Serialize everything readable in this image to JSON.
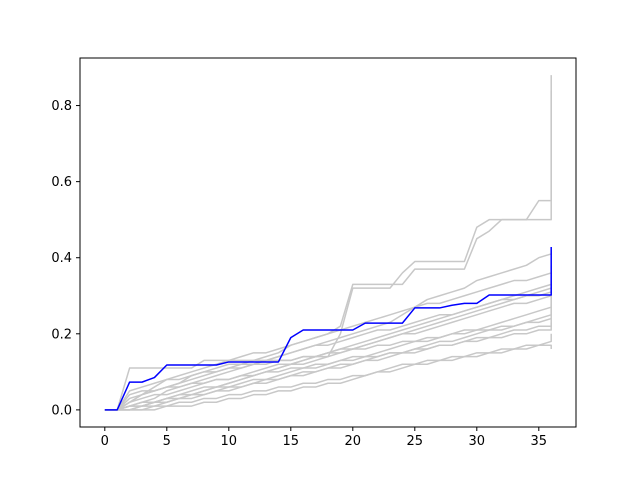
{
  "chart_data": {
    "type": "line",
    "title": "",
    "xlabel": "",
    "ylabel": "",
    "xlim": [
      -2,
      38
    ],
    "ylim": [
      -0.045,
      0.925
    ],
    "x_ticks": [
      0,
      5,
      10,
      15,
      20,
      25,
      30,
      35
    ],
    "x_tick_labels": [
      "0",
      "5",
      "10",
      "15",
      "20",
      "25",
      "30",
      "35"
    ],
    "y_ticks": [
      0.0,
      0.2,
      0.4,
      0.6,
      0.8
    ],
    "y_tick_labels": [
      "0.0",
      "0.2",
      "0.4",
      "0.6",
      "0.8"
    ],
    "grid": false,
    "background_series_color": "#c8c8c8",
    "highlight_color": "#0000ff",
    "x": [
      0,
      1,
      2,
      3,
      4,
      5,
      6,
      7,
      8,
      9,
      10,
      11,
      12,
      13,
      14,
      15,
      16,
      17,
      18,
      19,
      20,
      21,
      22,
      23,
      24,
      25,
      26,
      27,
      28,
      29,
      30,
      31,
      32,
      33,
      34,
      35,
      36
    ],
    "highlight_series": {
      "values": [
        0.0,
        0.0,
        0.073,
        0.073,
        0.085,
        0.118,
        0.118,
        0.118,
        0.118,
        0.118,
        0.126,
        0.126,
        0.126,
        0.126,
        0.126,
        0.19,
        0.21,
        0.21,
        0.21,
        0.21,
        0.21,
        0.228,
        0.228,
        0.228,
        0.228,
        0.268,
        0.268,
        0.268,
        0.275,
        0.28,
        0.28,
        0.302,
        0.302,
        0.302,
        0.302,
        0.302,
        0.302
      ],
      "final_spike": 0.428
    },
    "background_series": [
      {
        "values": [
          0.0,
          0.0,
          0.11,
          0.11,
          0.11,
          0.11,
          0.11,
          0.11,
          0.13,
          0.13,
          0.13,
          0.13,
          0.13,
          0.13,
          0.13,
          0.13,
          0.14,
          0.14,
          0.14,
          0.2,
          0.32,
          0.32,
          0.32,
          0.32,
          0.36,
          0.39,
          0.39,
          0.39,
          0.39,
          0.39,
          0.48,
          0.5,
          0.5,
          0.5,
          0.5,
          0.55,
          0.55
        ],
        "final_spike": 0.88
      },
      {
        "values": [
          0.0,
          0.0,
          0.02,
          0.04,
          0.05,
          0.06,
          0.07,
          0.09,
          0.1,
          0.11,
          0.12,
          0.12,
          0.13,
          0.14,
          0.15,
          0.17,
          0.18,
          0.19,
          0.2,
          0.22,
          0.33,
          0.33,
          0.33,
          0.33,
          0.33,
          0.37,
          0.37,
          0.37,
          0.37,
          0.37,
          0.45,
          0.47,
          0.5,
          0.5,
          0.5,
          0.5,
          0.5
        ],
        "final_spike": 0.84
      },
      {
        "values": [
          0.0,
          0.0,
          0.01,
          0.02,
          0.03,
          0.05,
          0.06,
          0.07,
          0.08,
          0.09,
          0.1,
          0.11,
          0.12,
          0.13,
          0.14,
          0.15,
          0.16,
          0.17,
          0.18,
          0.19,
          0.2,
          0.21,
          0.22,
          0.23,
          0.25,
          0.27,
          0.29,
          0.3,
          0.31,
          0.32,
          0.34,
          0.35,
          0.36,
          0.37,
          0.38,
          0.4,
          0.41
        ],
        "final_spike": 0.42
      },
      {
        "values": [
          0.0,
          0.0,
          0.01,
          0.01,
          0.02,
          0.03,
          0.04,
          0.05,
          0.06,
          0.06,
          0.07,
          0.08,
          0.09,
          0.1,
          0.11,
          0.12,
          0.13,
          0.14,
          0.15,
          0.16,
          0.17,
          0.18,
          0.19,
          0.2,
          0.21,
          0.22,
          0.23,
          0.24,
          0.25,
          0.26,
          0.27,
          0.28,
          0.29,
          0.3,
          0.31,
          0.32,
          0.33
        ],
        "final_spike": 0.36
      },
      {
        "values": [
          0.0,
          0.0,
          0.0,
          0.01,
          0.01,
          0.02,
          0.03,
          0.03,
          0.04,
          0.05,
          0.06,
          0.06,
          0.07,
          0.08,
          0.08,
          0.09,
          0.1,
          0.1,
          0.11,
          0.12,
          0.12,
          0.13,
          0.14,
          0.15,
          0.15,
          0.16,
          0.17,
          0.18,
          0.18,
          0.19,
          0.2,
          0.21,
          0.21,
          0.22,
          0.23,
          0.24,
          0.25
        ],
        "final_spike": 0.28
      },
      {
        "values": [
          0.0,
          0.0,
          0.05,
          0.06,
          0.07,
          0.08,
          0.08,
          0.09,
          0.1,
          0.1,
          0.11,
          0.11,
          0.12,
          0.12,
          0.13,
          0.13,
          0.14,
          0.14,
          0.15,
          0.15,
          0.16,
          0.16,
          0.17,
          0.17,
          0.18,
          0.18,
          0.19,
          0.19,
          0.2,
          0.2,
          0.21,
          0.21,
          0.22,
          0.22,
          0.23,
          0.23,
          0.24
        ],
        "final_spike": 0.3
      },
      {
        "values": [
          0.0,
          0.0,
          0.0,
          0.0,
          0.01,
          0.01,
          0.02,
          0.02,
          0.03,
          0.03,
          0.04,
          0.04,
          0.05,
          0.05,
          0.06,
          0.06,
          0.07,
          0.07,
          0.08,
          0.08,
          0.09,
          0.09,
          0.1,
          0.11,
          0.12,
          0.12,
          0.13,
          0.13,
          0.14,
          0.14,
          0.15,
          0.15,
          0.16,
          0.16,
          0.17,
          0.17,
          0.18
        ],
        "final_spike": 0.2
      },
      {
        "values": [
          0.0,
          0.0,
          0.03,
          0.04,
          0.05,
          0.06,
          0.07,
          0.08,
          0.09,
          0.1,
          0.11,
          0.12,
          0.12,
          0.13,
          0.14,
          0.15,
          0.16,
          0.17,
          0.17,
          0.18,
          0.19,
          0.2,
          0.21,
          0.21,
          0.22,
          0.23,
          0.24,
          0.25,
          0.25,
          0.26,
          0.27,
          0.28,
          0.29,
          0.29,
          0.3,
          0.31,
          0.32
        ],
        "final_spike": 0.34
      },
      {
        "values": [
          0.0,
          0.0,
          0.01,
          0.02,
          0.02,
          0.03,
          0.04,
          0.04,
          0.05,
          0.06,
          0.06,
          0.07,
          0.08,
          0.08,
          0.09,
          0.1,
          0.11,
          0.11,
          0.12,
          0.13,
          0.14,
          0.14,
          0.15,
          0.16,
          0.17,
          0.18,
          0.18,
          0.19,
          0.2,
          0.21,
          0.21,
          0.22,
          0.23,
          0.24,
          0.25,
          0.26,
          0.27
        ],
        "final_spike": 0.3
      },
      {
        "values": [
          0.0,
          0.0,
          0.02,
          0.03,
          0.04,
          0.04,
          0.05,
          0.06,
          0.07,
          0.08,
          0.08,
          0.09,
          0.1,
          0.11,
          0.12,
          0.12,
          0.13,
          0.14,
          0.15,
          0.16,
          0.16,
          0.17,
          0.18,
          0.19,
          0.2,
          0.2,
          0.21,
          0.22,
          0.23,
          0.24,
          0.25,
          0.26,
          0.27,
          0.28,
          0.28,
          0.29,
          0.3
        ],
        "final_spike": 0.32
      },
      {
        "values": [
          0.0,
          0.0,
          0.0,
          0.01,
          0.02,
          0.03,
          0.03,
          0.04,
          0.05,
          0.06,
          0.07,
          0.08,
          0.09,
          0.1,
          0.11,
          0.12,
          0.12,
          0.13,
          0.14,
          0.15,
          0.16,
          0.17,
          0.18,
          0.19,
          0.2,
          0.21,
          0.22,
          0.23,
          0.24,
          0.25,
          0.26,
          0.27,
          0.28,
          0.29,
          0.3,
          0.3,
          0.31
        ],
        "final_spike": 0.35
      },
      {
        "values": [
          0.0,
          0.0,
          0.04,
          0.05,
          0.05,
          0.06,
          0.06,
          0.07,
          0.07,
          0.08,
          0.08,
          0.09,
          0.09,
          0.1,
          0.1,
          0.11,
          0.11,
          0.12,
          0.12,
          0.13,
          0.13,
          0.14,
          0.14,
          0.15,
          0.15,
          0.16,
          0.16,
          0.17,
          0.17,
          0.18,
          0.18,
          0.19,
          0.19,
          0.2,
          0.2,
          0.21,
          0.21
        ],
        "final_spike": 0.23
      },
      {
        "values": [
          0.0,
          0.0,
          0.01,
          0.01,
          0.02,
          0.02,
          0.03,
          0.04,
          0.04,
          0.05,
          0.05,
          0.06,
          0.07,
          0.07,
          0.08,
          0.09,
          0.09,
          0.1,
          0.11,
          0.11,
          0.12,
          0.13,
          0.13,
          0.14,
          0.15,
          0.15,
          0.16,
          0.17,
          0.17,
          0.18,
          0.19,
          0.19,
          0.2,
          0.21,
          0.21,
          0.22,
          0.22
        ],
        "final_spike": 0.24
      },
      {
        "values": [
          0.0,
          0.0,
          0.02,
          0.04,
          0.06,
          0.08,
          0.09,
          0.1,
          0.11,
          0.12,
          0.13,
          0.14,
          0.15,
          0.15,
          0.16,
          0.17,
          0.18,
          0.19,
          0.2,
          0.21,
          0.22,
          0.23,
          0.24,
          0.25,
          0.26,
          0.27,
          0.28,
          0.28,
          0.29,
          0.3,
          0.31,
          0.32,
          0.33,
          0.34,
          0.34,
          0.35,
          0.36
        ],
        "final_spike": 0.38
      },
      {
        "values": [
          0.0,
          0.0,
          0.0,
          0.0,
          0.0,
          0.01,
          0.01,
          0.01,
          0.02,
          0.02,
          0.03,
          0.03,
          0.04,
          0.04,
          0.05,
          0.05,
          0.06,
          0.06,
          0.07,
          0.07,
          0.08,
          0.09,
          0.1,
          0.1,
          0.11,
          0.12,
          0.12,
          0.13,
          0.13,
          0.14,
          0.14,
          0.15,
          0.15,
          0.16,
          0.16,
          0.17,
          0.17
        ],
        "final_spike": 0.16
      }
    ]
  }
}
